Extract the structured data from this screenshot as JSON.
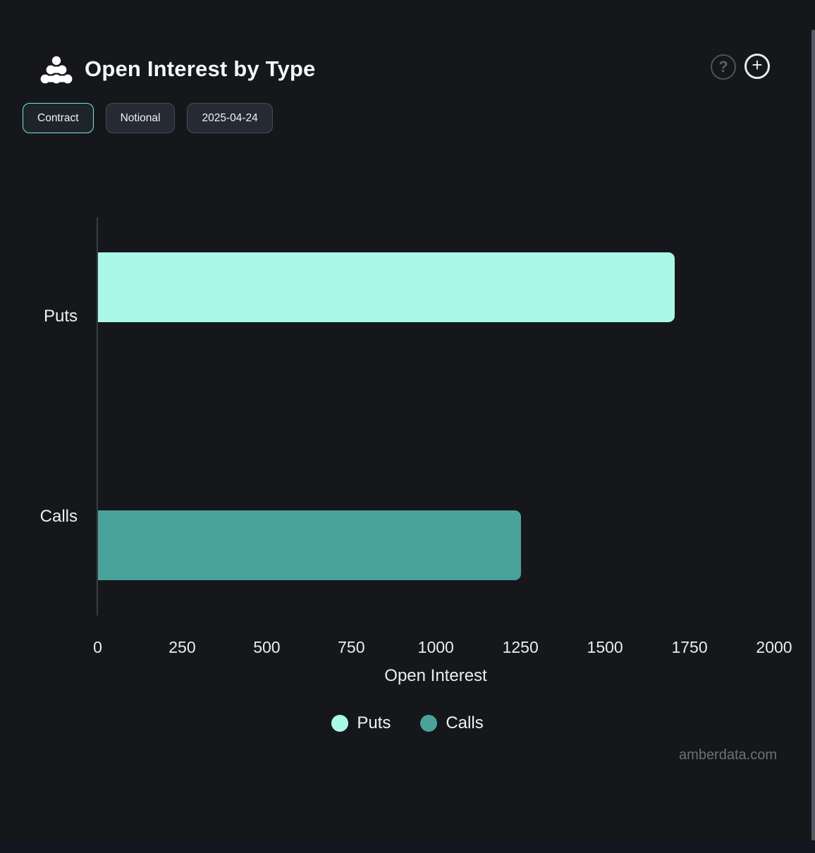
{
  "header": {
    "title": "Open Interest by Type",
    "help_icon": "question-mark-circle-icon",
    "add_icon": "plus-circle-icon",
    "help_glyph": "?",
    "add_glyph": "+"
  },
  "controls": {
    "buttons": [
      {
        "label": "Contract",
        "active": true
      },
      {
        "label": "Notional",
        "active": false
      },
      {
        "label": "2025-04-24",
        "active": false
      }
    ]
  },
  "chart_data": {
    "type": "bar",
    "orientation": "horizontal",
    "categories": [
      "Puts",
      "Calls"
    ],
    "values": [
      1705,
      1250
    ],
    "colors": [
      "#a9f8e8",
      "#4aa39b"
    ],
    "title": "Open Interest by Type",
    "xlabel": "Open Interest",
    "ylabel": "",
    "xlim": [
      0,
      2000
    ],
    "xticks": [
      0,
      250,
      500,
      750,
      1000,
      1250,
      1500,
      1750,
      2000
    ],
    "grid": false,
    "legend_position": "bottom",
    "legend": [
      {
        "label": "Puts",
        "color": "#a9f8e8"
      },
      {
        "label": "Calls",
        "color": "#4aa39b"
      }
    ]
  },
  "watermark": "amberdata.com",
  "theme": {
    "background": "#15171a",
    "accent_mint": "#72e8d2",
    "bar_puts": "#a9f8e8",
    "bar_calls": "#4aa39b",
    "axis_line": "#3a3e44",
    "text": "#f2f3f4",
    "muted_text": "#6d7077"
  }
}
